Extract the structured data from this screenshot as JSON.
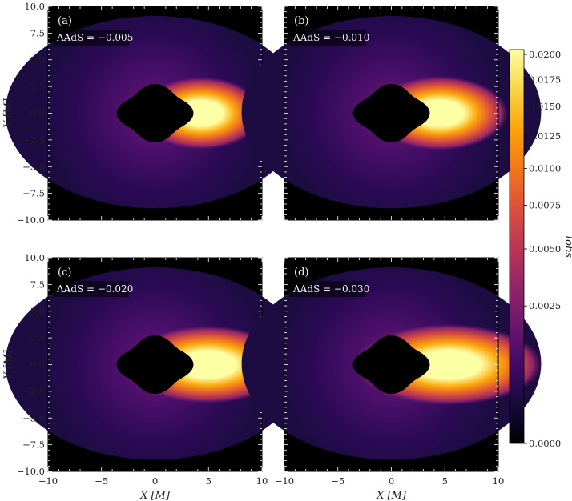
{
  "chart_data": {
    "type": "heatmap",
    "panels": [
      {
        "tag": "(a)",
        "lambda_text": "ΛAdS = −0.005",
        "lambda_ads": -0.005
      },
      {
        "tag": "(b)",
        "lambda_text": "ΛAdS = −0.010",
        "lambda_ads": -0.01
      },
      {
        "tag": "(c)",
        "lambda_text": "ΛAdS = −0.020",
        "lambda_ads": -0.02
      },
      {
        "tag": "(d)",
        "lambda_text": "ΛAdS = −0.030",
        "lambda_ads": -0.03
      }
    ],
    "xlabel": "X [M]",
    "ylabel": "Y [M]",
    "xlim": [
      -10,
      10
    ],
    "ylim": [
      -10,
      10
    ],
    "x_ticks": [
      "−10",
      "−5",
      "0",
      "5",
      "10"
    ],
    "y_ticks": [
      "10.0",
      "7.5",
      "5.0",
      "2.5",
      "0.0",
      "−2.5",
      "−5.0",
      "−7.5",
      "−10.0"
    ],
    "colorbar": {
      "label": "Iobs",
      "colormap": "inferno",
      "range": [
        0.0,
        0.0205
      ],
      "scale": "power",
      "ticks": [
        0.0,
        0.0025,
        0.005,
        0.0075,
        0.01,
        0.0125,
        0.015,
        0.0175,
        0.02
      ],
      "tick_labels": [
        "0.0000",
        "0.0025",
        "0.0050",
        "0.0075",
        "0.0100",
        "0.0125",
        "0.0150",
        "0.0175",
        "0.0200"
      ]
    }
  },
  "colors": {
    "background": "#000000",
    "inferno_low": "#000004",
    "inferno_mid": "#bc3754",
    "inferno_high": "#fcffa4"
  }
}
